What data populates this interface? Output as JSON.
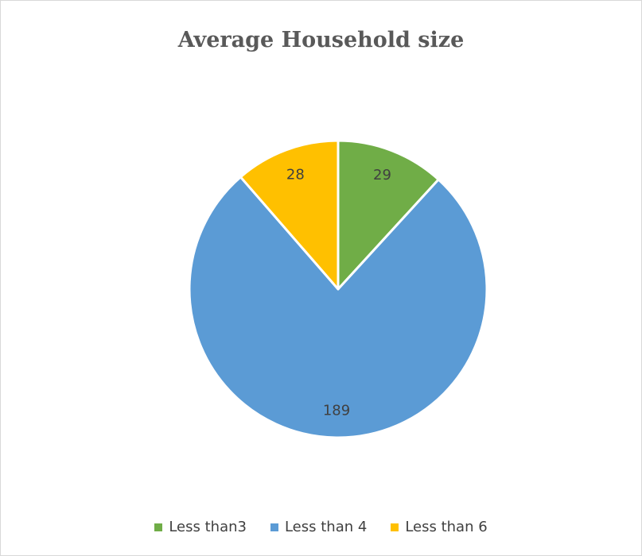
{
  "chart_data": {
    "type": "pie",
    "title": "Average Household size",
    "categories": [
      "Less than3",
      "Less than 4",
      "Less than 6"
    ],
    "values": [
      29,
      189,
      28
    ],
    "colors": [
      "#70ad47",
      "#5b9bd5",
      "#ffc000"
    ],
    "legend_position": "bottom",
    "start_angle_deg": 0,
    "direction": "clockwise"
  }
}
